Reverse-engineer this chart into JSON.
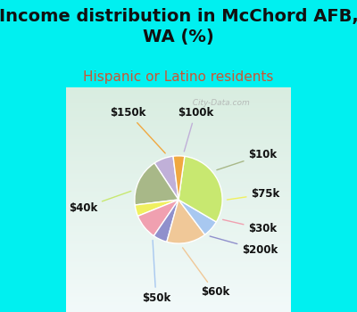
{
  "title": "Income distribution in McChord AFB,\nWA (%)",
  "subtitle": "Hispanic or Latino residents",
  "labels": [
    "$100k",
    "$10k",
    "$75k",
    "$30k",
    "$200k",
    "$60k",
    "$50k",
    "$40k",
    "$150k"
  ],
  "values": [
    7,
    17,
    4,
    9,
    5,
    14,
    6,
    30,
    4
  ],
  "colors": [
    "#c0b0d8",
    "#a8b888",
    "#f0f060",
    "#f0a0b0",
    "#9090cc",
    "#f0c898",
    "#a8c8f0",
    "#c8e870",
    "#f0a840"
  ],
  "startangle": 97,
  "background_color": "#00f0f0",
  "plot_bg": "#d8ede0",
  "watermark": "  City-Data.com",
  "title_fontsize": 14,
  "subtitle_fontsize": 11,
  "subtitle_color": "#cc5533",
  "label_fontsize": 8.5,
  "label_color": "#111111"
}
